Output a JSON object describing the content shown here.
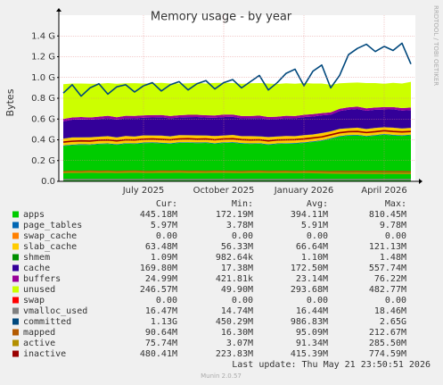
{
  "chart_data": {
    "type": "area",
    "title": "Memory usage - by year",
    "y_label": "Bytes",
    "side_label": "RRDTOOL / TOBI OETIKER",
    "categories": [
      null,
      null,
      null,
      null,
      null,
      null,
      null,
      null,
      null,
      "July 2025",
      null,
      null,
      null,
      null,
      null,
      null,
      null,
      null,
      "October 2025",
      null,
      null,
      null,
      null,
      null,
      null,
      null,
      null,
      "January 2026",
      null,
      null,
      null,
      null,
      null,
      null,
      null,
      null,
      "April 2026",
      null,
      null,
      null
    ],
    "ylim": [
      0,
      1600000000.0
    ],
    "yticks": [
      {
        "value": 0,
        "label": "0.0"
      },
      {
        "value": 200000000.0,
        "label": "0.2 G"
      },
      {
        "value": 400000000.0,
        "label": "0.4 G"
      },
      {
        "value": 600000000.0,
        "label": "0.6 G"
      },
      {
        "value": 800000000.0,
        "label": "0.8 G"
      },
      {
        "value": 1000000000.0,
        "label": "1.0 G"
      },
      {
        "value": 1200000000.0,
        "label": "1.2 G"
      },
      {
        "value": 1400000000.0,
        "label": "1.4 G"
      }
    ],
    "grid": true,
    "legend_columns": [
      "Cur:",
      "Min:",
      "Avg:",
      "Max:"
    ],
    "series": [
      {
        "name": "apps",
        "color": "#00cc00",
        "style": "area",
        "stats": [
          "445.18M",
          "172.19M",
          "394.11M",
          "810.45M"
        ],
        "values": [
          340000000.0,
          348000000.0,
          352000000.0,
          350000000.0,
          358000000.0,
          360000000.0,
          352000000.0,
          362000000.0,
          360000000.0,
          368000000.0,
          370000000.0,
          366000000.0,
          362000000.0,
          370000000.0,
          372000000.0,
          368000000.0,
          370000000.0,
          362000000.0,
          370000000.0,
          372000000.0,
          364000000.0,
          360000000.0,
          362000000.0,
          352000000.0,
          360000000.0,
          362000000.0,
          364000000.0,
          370000000.0,
          380000000.0,
          390000000.0,
          410000000.0,
          430000000.0,
          440000000.0,
          442000000.0,
          432000000.0,
          440000000.0,
          450000000.0,
          442000000.0,
          438000000.0,
          445000000.0
        ]
      },
      {
        "name": "page_tables",
        "color": "#0066b3",
        "style": "area",
        "stats": [
          "5.97M",
          "3.78M",
          "5.91M",
          "9.78M"
        ],
        "values": [
          5800000.0,
          6000000.0,
          5800000.0,
          6000000.0,
          5800000.0,
          6000000.0,
          5800000.0,
          6000000.0,
          5800000.0,
          6000000.0,
          5800000.0,
          6000000.0,
          5800000.0,
          6000000.0,
          5800000.0,
          6000000.0,
          5800000.0,
          6000000.0,
          5800000.0,
          6000000.0,
          5800000.0,
          6000000.0,
          5800000.0,
          6000000.0,
          5800000.0,
          6000000.0,
          5800000.0,
          6000000.0,
          5800000.0,
          6000000.0,
          5800000.0,
          6000000.0,
          5800000.0,
          6000000.0,
          5800000.0,
          6000000.0,
          5800000.0,
          6000000.0,
          5800000.0,
          5970000.0
        ]
      },
      {
        "name": "swap_cache",
        "color": "#ff8000",
        "style": "area",
        "stats": [
          "0.00",
          "0.00",
          "0.00",
          "0.00"
        ],
        "values": [
          0,
          0,
          0,
          0,
          0,
          0,
          0,
          0,
          0,
          0,
          0,
          0,
          0,
          0,
          0,
          0,
          0,
          0,
          0,
          0,
          0,
          0,
          0,
          0,
          0,
          0,
          0,
          0,
          0,
          0,
          0,
          0,
          0,
          0,
          0,
          0,
          0,
          0,
          0,
          0
        ]
      },
      {
        "name": "slab_cache",
        "color": "#ffcc00",
        "style": "area",
        "stats": [
          "63.48M",
          "56.33M",
          "66.64M",
          "121.13M"
        ],
        "values": [
          65000000.0,
          68000000.0,
          65000000.0,
          68000000.0,
          65000000.0,
          68000000.0,
          65000000.0,
          68000000.0,
          65000000.0,
          68000000.0,
          65000000.0,
          68000000.0,
          65000000.0,
          68000000.0,
          65000000.0,
          68000000.0,
          65000000.0,
          68000000.0,
          65000000.0,
          68000000.0,
          65000000.0,
          68000000.0,
          65000000.0,
          68000000.0,
          65000000.0,
          68000000.0,
          65000000.0,
          68000000.0,
          65000000.0,
          68000000.0,
          65000000.0,
          68000000.0,
          65000000.0,
          68000000.0,
          65000000.0,
          68000000.0,
          65000000.0,
          68000000.0,
          65000000.0,
          63500000.0
        ]
      },
      {
        "name": "shmem",
        "color": "#008f00",
        "style": "area",
        "stats": [
          "1.09M",
          "982.64k",
          "1.10M",
          "1.48M"
        ],
        "values": [
          1100000.0,
          1100000.0,
          1100000.0,
          1100000.0,
          1100000.0,
          1100000.0,
          1100000.0,
          1100000.0,
          1100000.0,
          1100000.0,
          1100000.0,
          1100000.0,
          1100000.0,
          1100000.0,
          1100000.0,
          1100000.0,
          1100000.0,
          1100000.0,
          1100000.0,
          1100000.0,
          1100000.0,
          1100000.0,
          1100000.0,
          1100000.0,
          1100000.0,
          1100000.0,
          1100000.0,
          1100000.0,
          1100000.0,
          1100000.0,
          1100000.0,
          1100000.0,
          1100000.0,
          1100000.0,
          1100000.0,
          1100000.0,
          1100000.0,
          1100000.0,
          1100000.0,
          1090000.0
        ]
      },
      {
        "name": "cache",
        "color": "#330099",
        "style": "area",
        "stats": [
          "169.80M",
          "17.38M",
          "172.50M",
          "557.74M"
        ],
        "values": [
          166000000.0,
          170000000.0,
          172000000.0,
          168000000.0,
          170000000.0,
          174000000.0,
          170000000.0,
          172000000.0,
          175000000.0,
          170000000.0,
          173000000.0,
          176000000.0,
          172000000.0,
          170000000.0,
          174000000.0,
          176000000.0,
          172000000.0,
          175000000.0,
          178000000.0,
          174000000.0,
          170000000.0,
          172000000.0,
          176000000.0,
          170000000.0,
          168000000.0,
          172000000.0,
          170000000.0,
          174000000.0,
          172000000.0,
          170000000.0,
          160000000.0,
          172000000.0,
          178000000.0,
          180000000.0,
          176000000.0,
          174000000.0,
          170000000.0,
          176000000.0,
          172000000.0,
          170000000.0
        ]
      },
      {
        "name": "buffers",
        "color": "#990099",
        "style": "area",
        "stats": [
          "24.99M",
          "421.81k",
          "23.14M",
          "76.22M"
        ],
        "values": [
          23000000.0,
          22000000.0,
          23000000.0,
          22000000.0,
          23000000.0,
          22000000.0,
          23000000.0,
          22000000.0,
          23000000.0,
          22000000.0,
          23000000.0,
          22000000.0,
          23000000.0,
          22000000.0,
          23000000.0,
          22000000.0,
          23000000.0,
          22000000.0,
          23000000.0,
          22000000.0,
          23000000.0,
          22000000.0,
          23000000.0,
          22000000.0,
          23000000.0,
          22000000.0,
          23000000.0,
          22000000.0,
          23000000.0,
          22000000.0,
          23000000.0,
          22000000.0,
          23000000.0,
          22000000.0,
          23000000.0,
          22000000.0,
          23000000.0,
          22000000.0,
          23000000.0,
          25000000.0
        ]
      },
      {
        "name": "unused",
        "color": "#ccff00",
        "style": "area",
        "stats": [
          "246.57M",
          "49.90M",
          "293.68M",
          "482.77M"
        ],
        "values": [
          335000000.0,
          327000000.0,
          323000000.0,
          325000000.0,
          317000000.0,
          315000000.0,
          323000000.0,
          313000000.0,
          315000000.0,
          307000000.0,
          305000000.0,
          309000000.0,
          313000000.0,
          305000000.0,
          303000000.0,
          307000000.0,
          305000000.0,
          313000000.0,
          305000000.0,
          303000000.0,
          311000000.0,
          315000000.0,
          313000000.0,
          323000000.0,
          315000000.0,
          313000000.0,
          311000000.0,
          305000000.0,
          295000000.0,
          285000000.0,
          265000000.0,
          245000000.0,
          235000000.0,
          233000000.0,
          243000000.0,
          235000000.0,
          225000000.0,
          233000000.0,
          237000000.0,
          247000000.0
        ]
      },
      {
        "name": "swap",
        "color": "#ff0000",
        "style": "area",
        "stats": [
          "0.00",
          "0.00",
          "0.00",
          "0.00"
        ],
        "values": [
          0,
          0,
          0,
          0,
          0,
          0,
          0,
          0,
          0,
          0,
          0,
          0,
          0,
          0,
          0,
          0,
          0,
          0,
          0,
          0,
          0,
          0,
          0,
          0,
          0,
          0,
          0,
          0,
          0,
          0,
          0,
          0,
          0,
          0,
          0,
          0,
          0,
          0,
          0,
          0
        ]
      },
      {
        "name": "vmalloc_used",
        "color": "#808080",
        "style": "line",
        "stats": [
          "16.47M",
          "14.74M",
          "16.44M",
          "18.46M"
        ],
        "values": [
          16400000.0,
          16400000.0,
          16400000.0,
          16400000.0,
          16400000.0,
          16400000.0,
          16400000.0,
          16400000.0,
          16400000.0,
          16400000.0,
          16400000.0,
          16400000.0,
          16400000.0,
          16400000.0,
          16400000.0,
          16400000.0,
          16400000.0,
          16400000.0,
          16400000.0,
          16400000.0,
          16400000.0,
          16400000.0,
          16400000.0,
          16400000.0,
          16400000.0,
          16400000.0,
          16400000.0,
          16400000.0,
          16400000.0,
          16400000.0,
          16400000.0,
          16400000.0,
          16400000.0,
          16400000.0,
          16400000.0,
          16400000.0,
          16400000.0,
          16400000.0,
          16400000.0,
          16500000.0
        ]
      },
      {
        "name": "committed",
        "color": "#00487d",
        "style": "line",
        "stats": [
          "1.13G",
          "450.29M",
          "986.83M",
          "2.65G"
        ],
        "values": [
          850000000.0,
          930000000.0,
          820000000.0,
          900000000.0,
          940000000.0,
          840000000.0,
          910000000.0,
          930000000.0,
          860000000.0,
          920000000.0,
          950000000.0,
          870000000.0,
          930000000.0,
          960000000.0,
          880000000.0,
          940000000.0,
          970000000.0,
          890000000.0,
          950000000.0,
          980000000.0,
          900000000.0,
          960000000.0,
          1020000000.0,
          880000000.0,
          950000000.0,
          1040000000.0,
          1080000000.0,
          920000000.0,
          1060000000.0,
          1120000000.0,
          900000000.0,
          1020000000.0,
          1220000000.0,
          1280000000.0,
          1320000000.0,
          1250000000.0,
          1300000000.0,
          1260000000.0,
          1330000000.0,
          1130000000.0
        ]
      },
      {
        "name": "mapped",
        "color": "#b35a00",
        "style": "line",
        "stats": [
          "90.64M",
          "16.30M",
          "95.09M",
          "212.67M"
        ],
        "values": [
          92000000.0,
          96000000.0,
          94000000.0,
          98000000.0,
          95000000.0,
          97000000.0,
          93000000.0,
          96000000.0,
          98000000.0,
          95000000.0,
          94000000.0,
          97000000.0,
          96000000.0,
          98000000.0,
          95000000.0,
          96000000.0,
          94000000.0,
          97000000.0,
          96000000.0,
          95000000.0,
          93000000.0,
          96000000.0,
          97000000.0,
          94000000.0,
          95000000.0,
          96000000.0,
          93000000.0,
          95000000.0,
          96000000.0,
          94000000.0,
          92000000.0,
          95000000.0,
          94000000.0,
          96000000.0,
          93000000.0,
          95000000.0,
          94000000.0,
          92000000.0,
          93000000.0,
          90600000.0
        ]
      },
      {
        "name": "active",
        "color": "#b38f00",
        "style": "line",
        "stats": [
          "75.74M",
          "3.07M",
          "91.34M",
          "285.50M"
        ],
        "values": [
          84000000.0,
          88000000.0,
          86000000.0,
          90000000.0,
          87000000.0,
          89000000.0,
          85000000.0,
          88000000.0,
          90000000.0,
          87000000.0,
          86000000.0,
          89000000.0,
          88000000.0,
          90000000.0,
          87000000.0,
          88000000.0,
          86000000.0,
          89000000.0,
          88000000.0,
          87000000.0,
          85000000.0,
          88000000.0,
          89000000.0,
          86000000.0,
          87000000.0,
          88000000.0,
          85000000.0,
          87000000.0,
          84000000.0,
          82000000.0,
          80000000.0,
          79000000.0,
          78000000.0,
          79000000.0,
          77000000.0,
          78000000.0,
          76000000.0,
          77000000.0,
          76000000.0,
          75700000.0
        ]
      },
      {
        "name": "inactive",
        "color": "#990000",
        "style": "line",
        "stats": [
          "480.41M",
          "223.83M",
          "415.39M",
          "774.59M"
        ],
        "values": [
          378000000.0,
          386000000.0,
          390000000.0,
          388000000.0,
          396000000.0,
          398000000.0,
          390000000.0,
          400000000.0,
          398000000.0,
          406000000.0,
          408000000.0,
          404000000.0,
          400000000.0,
          408000000.0,
          410000000.0,
          406000000.0,
          408000000.0,
          400000000.0,
          408000000.0,
          410000000.0,
          402000000.0,
          398000000.0,
          400000000.0,
          390000000.0,
          398000000.0,
          400000000.0,
          402000000.0,
          408000000.0,
          418000000.0,
          428000000.0,
          448000000.0,
          468000000.0,
          478000000.0,
          480000000.0,
          470000000.0,
          478000000.0,
          488000000.0,
          480000000.0,
          476000000.0,
          480000000.0
        ]
      }
    ],
    "footer": "Last update: Thu May 21 23:50:51 2026",
    "version": "Munin 2.0.57"
  }
}
